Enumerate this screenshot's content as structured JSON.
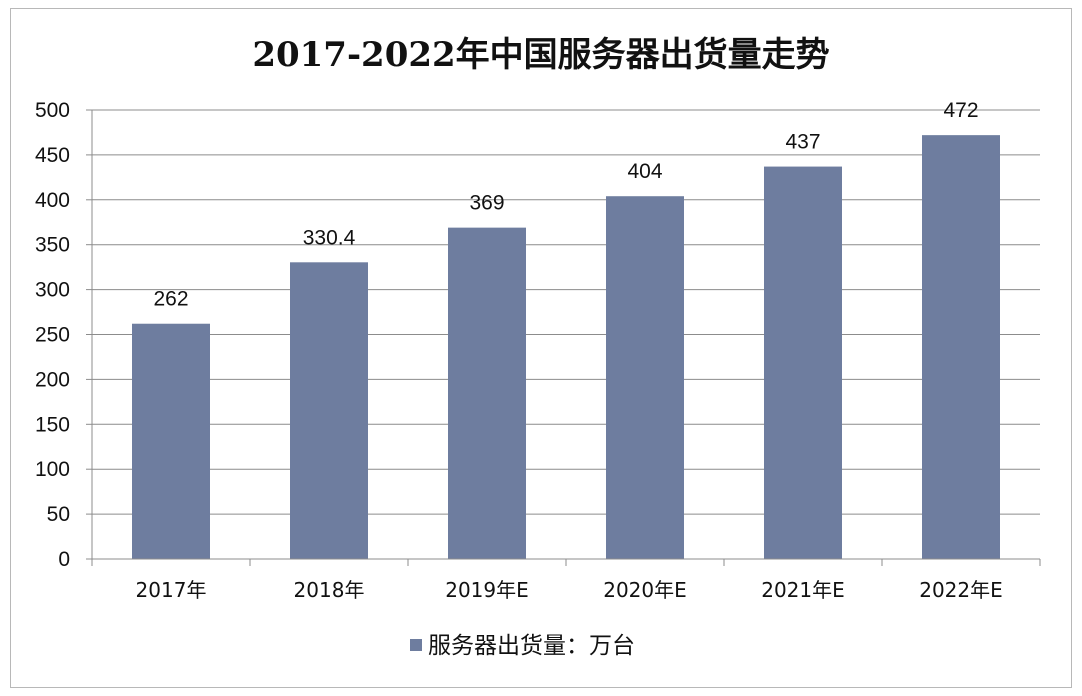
{
  "chart_data": {
    "type": "bar",
    "title": "2017-2022年中国服务器出货量走势",
    "categories": [
      "2017年",
      "2018年",
      "2019年E",
      "2020年E",
      "2021年E",
      "2022年E"
    ],
    "series": [
      {
        "name": "服务器出货量：万台",
        "values": [
          262,
          330.4,
          369,
          404,
          437,
          472
        ],
        "labels": [
          "262",
          "330.4",
          "369",
          "404",
          "437",
          "472"
        ],
        "color": "#6e7d9f"
      }
    ],
    "ylim": [
      0,
      500
    ],
    "yticks": [
      0,
      50,
      100,
      150,
      200,
      250,
      300,
      350,
      400,
      450,
      500
    ],
    "grid": true,
    "legend_position": "bottom"
  }
}
